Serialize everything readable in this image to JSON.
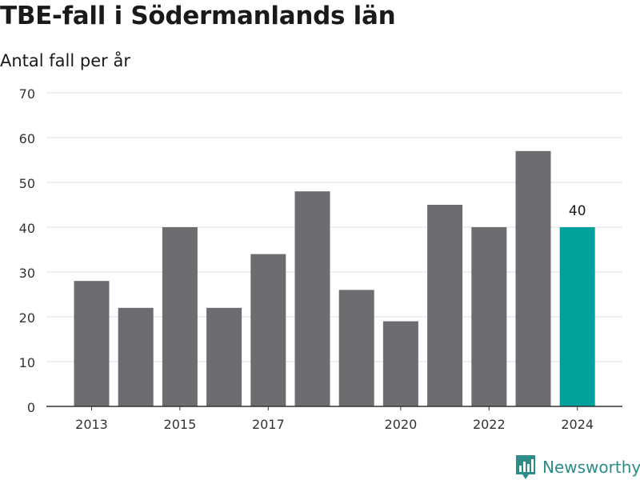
{
  "header": {
    "title": "TBE-fall i Södermanlands län",
    "subtitle": "Antal fall per år"
  },
  "brand": {
    "name": "Newsworthy",
    "icon": "newsworthy-logo-icon",
    "color": "#2c8c8a"
  },
  "chart_data": {
    "type": "bar",
    "title": "TBE-fall i Södermanlands län",
    "subtitle": "Antal fall per år",
    "categories": [
      "2013",
      "2014",
      "2015",
      "2016",
      "2017",
      "2018",
      "2019",
      "2020",
      "2021",
      "2022",
      "2023",
      "2024"
    ],
    "values": [
      28,
      22,
      40,
      22,
      34,
      48,
      26,
      19,
      45,
      40,
      57,
      40
    ],
    "xtick_labels": [
      "2013",
      "2015",
      "2017",
      "2020",
      "2022",
      "2024"
    ],
    "yticks": [
      0,
      10,
      20,
      30,
      40,
      50,
      60,
      70
    ],
    "ylim": [
      0,
      70
    ],
    "grid": true,
    "colors": {
      "bar": "#6d6c71",
      "highlight": "#00a19a"
    },
    "highlight_category": "2024",
    "data_labels": [
      {
        "category": "2024",
        "text": "40"
      }
    ]
  }
}
